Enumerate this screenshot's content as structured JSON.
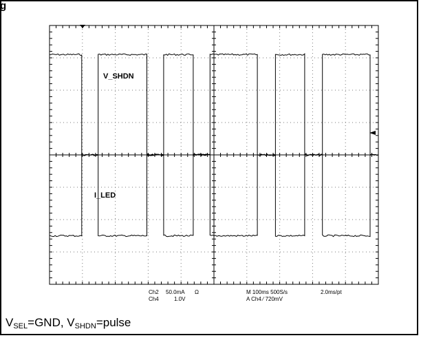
{
  "figure_label": "g",
  "caption": {
    "v1": "V",
    "v1_sub": "SEL",
    "mid": "=GND, ",
    "v2": "V",
    "v2_sub": "SHDN",
    "tail": "=pulse"
  },
  "scope_readout": {
    "ch2_name": "Ch2",
    "ch2_scale": "50.0mA",
    "ch2_coupling": "Ω",
    "ch4_name": "Ch4",
    "ch4_scale": "1.0V",
    "timebase": "M 100ms 500S/s",
    "record": "2.0ms/pt",
    "trigger": "A Ch4 ⁄ 720mV"
  },
  "chart_data": {
    "type": "line",
    "title": "",
    "xlabel": "",
    "ylabel": "",
    "grid": true,
    "divisions": {
      "x": 10,
      "y": 8
    },
    "x_unit": "ms",
    "x_range": [
      0,
      1000
    ],
    "series": [
      {
        "name": "V_SHDN",
        "units": "V",
        "description": "pulse train on Ch4",
        "x": [
          0,
          98,
          98,
          148,
          148,
          296,
          296,
          347,
          347,
          437,
          437,
          488,
          488,
          632,
          632,
          687,
          687,
          776,
          776,
          830,
          830,
          975,
          975,
          1000
        ],
        "y": [
          2.1,
          2.1,
          -1.0,
          -1.0,
          2.1,
          2.1,
          -1.0,
          -1.0,
          2.1,
          2.1,
          -1.0,
          -1.0,
          2.1,
          2.1,
          -1.0,
          -1.0,
          2.1,
          2.1,
          -1.0,
          -1.0,
          2.1,
          2.1,
          -1.0,
          -1.0
        ]
      },
      {
        "name": "I_LED",
        "units": "mA",
        "description": "LED current on Ch2",
        "x": [
          0,
          98,
          98,
          148,
          148,
          296,
          296,
          347,
          347,
          437,
          437,
          488,
          488,
          632,
          632,
          687,
          687,
          776,
          776,
          830,
          830,
          975,
          975,
          1000
        ],
        "y": [
          0,
          0,
          125,
          125,
          0,
          0,
          125,
          125,
          0,
          0,
          125,
          125,
          0,
          0,
          125,
          125,
          0,
          0,
          125,
          125,
          0,
          0,
          125,
          125
        ]
      }
    ],
    "markers": [
      "trigger-level arrow at right edge",
      "channel marker at top"
    ]
  }
}
